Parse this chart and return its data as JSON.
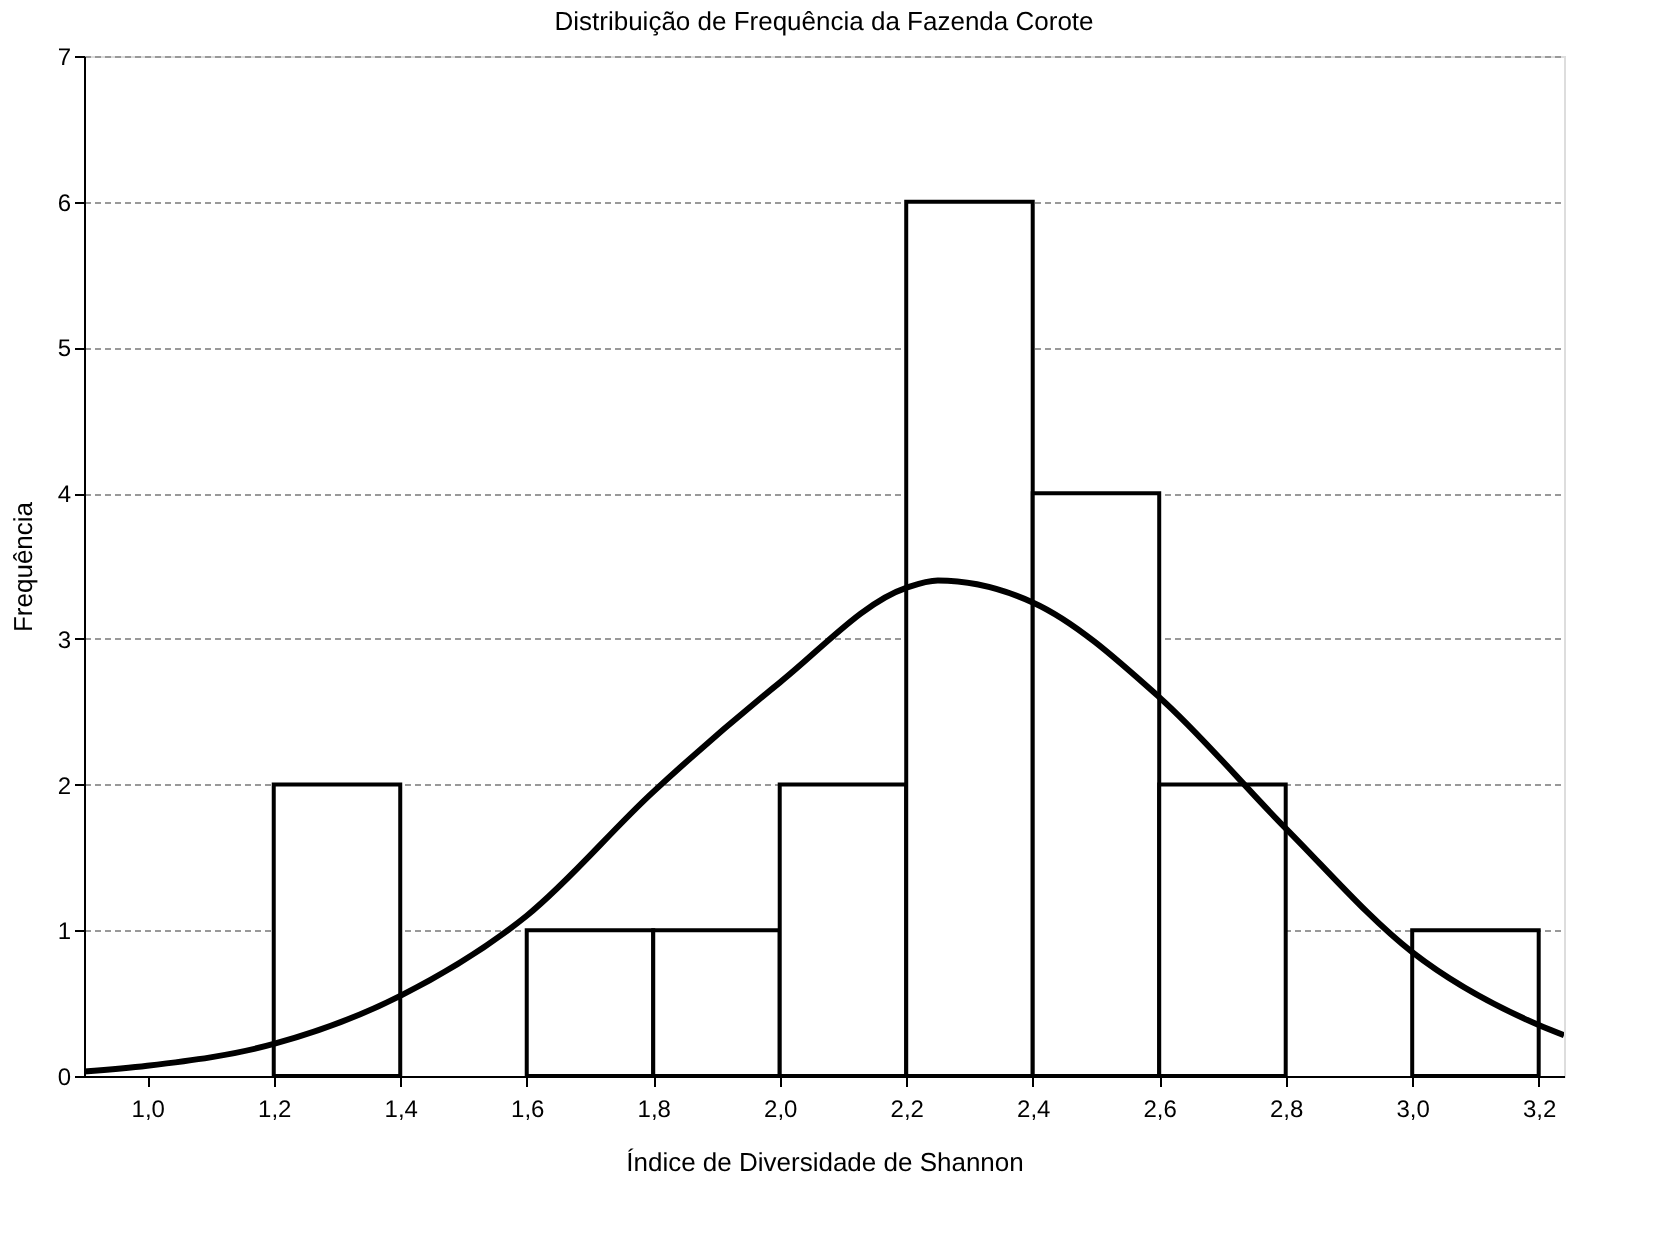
{
  "chart_data": {
    "type": "histogram",
    "title": "Distribuição de Frequência da Fazenda Corote",
    "xlabel": "Índice de Diversidade de Shannon",
    "ylabel": "Frequência",
    "bins": [
      1.2,
      1.4,
      1.6,
      1.8,
      2.0,
      2.2,
      2.4,
      2.6,
      2.8,
      3.0,
      3.2
    ],
    "values": [
      2,
      0,
      1,
      1,
      2,
      6,
      4,
      2,
      0,
      1
    ],
    "color": "#ffffff",
    "series": [
      {
        "type": "line",
        "color": "#000000",
        "x": [
          0.9,
          1.0,
          1.2,
          1.4,
          1.6,
          1.8,
          2.0,
          2.2,
          2.25,
          2.4,
          2.6,
          2.8,
          3.0,
          3.2,
          3.24
        ],
        "values": [
          0.03,
          0.07,
          0.22,
          0.55,
          1.1,
          1.95,
          2.7,
          3.35,
          3.4,
          3.25,
          2.6,
          1.7,
          0.85,
          0.35,
          0.28
        ]
      }
    ],
    "xlim": [
      0.9,
      3.24
    ],
    "xticks": [
      {
        "value": 1.0,
        "label": "1,0"
      },
      {
        "value": 1.2,
        "label": "1,2"
      },
      {
        "value": 1.4,
        "label": "1,4"
      },
      {
        "value": 1.6,
        "label": "1,6"
      },
      {
        "value": 1.8,
        "label": "1,8"
      },
      {
        "value": 2.0,
        "label": "2,0"
      },
      {
        "value": 2.2,
        "label": "2,2"
      },
      {
        "value": 2.4,
        "label": "2,4"
      },
      {
        "value": 2.6,
        "label": "2,6"
      },
      {
        "value": 2.8,
        "label": "2,8"
      },
      {
        "value": 3.0,
        "label": "3,0"
      },
      {
        "value": 3.2,
        "label": "3,2"
      }
    ],
    "ylim": [
      0,
      7
    ],
    "yticks": [
      0,
      1,
      2,
      3,
      4,
      5,
      6,
      7
    ],
    "grid": "y"
  }
}
